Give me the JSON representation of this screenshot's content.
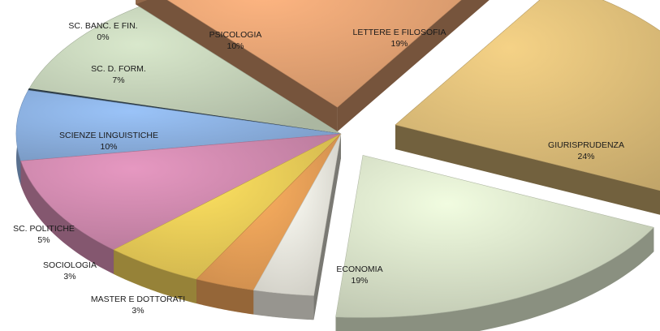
{
  "chart_data": {
    "type": "pie",
    "title": "",
    "slices": [
      {
        "label": "GIURISPRUDENZA",
        "value_text": "24%",
        "value": 24,
        "color": "#e3c27c"
      },
      {
        "label": "ECONOMIA",
        "value_text": "19%",
        "value": 19,
        "color": "#dfe9cf"
      },
      {
        "label": "MASTER E DOTTORATI",
        "value_text": "3%",
        "value": 3,
        "color": "#f4f1e6"
      },
      {
        "label": "SOCIOLOGIA",
        "value_text": "3%",
        "value": 3,
        "color": "#f0a55a"
      },
      {
        "label": "SC. POLITICHE",
        "value_text": "5%",
        "value": 5,
        "color": "#f2d25a"
      },
      {
        "label": "SCIENZE LINGUISTICHE",
        "value_text": "10%",
        "value": 10,
        "color": "#d58db3"
      },
      {
        "label": "SC. D. FORM.",
        "value_text": "7%",
        "value": 7,
        "color": "#8fb5e6"
      },
      {
        "label": "SC. BANC. E FIN.",
        "value_text": "0%",
        "value": 0,
        "color": "#2f3f4a"
      },
      {
        "label": "PSICOLOGIA",
        "value_text": "10%",
        "value": 10,
        "color": "#c9d7bd"
      },
      {
        "label": "LETTERE E FILOSOFIA",
        "value_text": "19%",
        "value": 19,
        "color": "#eba877"
      }
    ],
    "style": "3d-exploded"
  }
}
